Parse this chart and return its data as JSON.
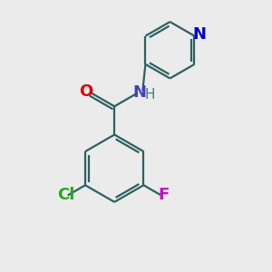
{
  "background_color": "#ebebeb",
  "atom_colors": {
    "C": "#1a1a1a",
    "N_amide": "#4040c0",
    "N_pyridine": "#0000dd",
    "O": "#dd0000",
    "Cl": "#22aa22",
    "F": "#cc00cc",
    "H": "#4a7a7a"
  },
  "bond_color": "#2d6060",
  "label_fontsize": 13,
  "figsize": [
    3.0,
    3.0
  ],
  "dpi": 100
}
